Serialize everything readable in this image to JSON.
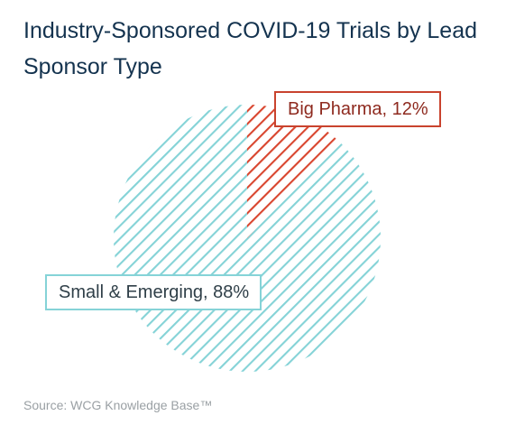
{
  "chart_data": {
    "type": "pie",
    "title": "Industry-Sponsored COVID-19 Trials by Lead Sponsor Type",
    "slices": [
      {
        "label": "Big Pharma, 12%",
        "value": 12,
        "color": "#d9462f"
      },
      {
        "label": "Small & Emerging, 88%",
        "value": 88,
        "color": "#85d3d7"
      }
    ],
    "fill_style": "diagonal-hatch",
    "legend": "none",
    "source": "Source: WCG Knowledge Base™"
  },
  "colors": {
    "title": "#14334f",
    "big_pharma_label_text": "#8e2a1f",
    "small_emerging_label_text": "#2f3f48",
    "source_text": "#9aa0a4"
  }
}
